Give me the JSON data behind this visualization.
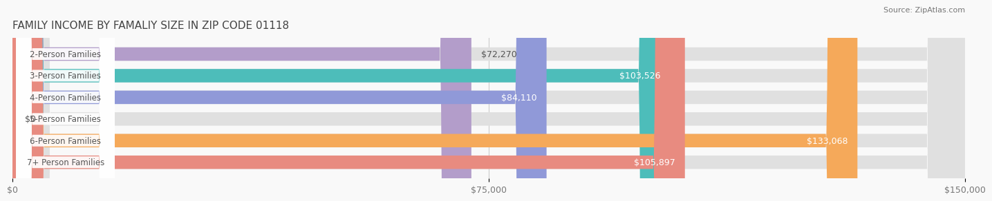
{
  "title": "FAMILY INCOME BY FAMALIY SIZE IN ZIP CODE 01118",
  "source": "Source: ZipAtlas.com",
  "categories": [
    "2-Person Families",
    "3-Person Families",
    "4-Person Families",
    "5-Person Families",
    "6-Person Families",
    "7+ Person Families"
  ],
  "values": [
    72270,
    103526,
    84110,
    0,
    133068,
    105897
  ],
  "bar_colors": [
    "#b39dca",
    "#4dbdba",
    "#9099d8",
    "#f7a8c0",
    "#f5a95a",
    "#e88b80"
  ],
  "bar_bg_color": "#e0e0e0",
  "xlim": [
    0,
    150000
  ],
  "xticks": [
    0,
    75000,
    150000
  ],
  "xtick_labels": [
    "$0",
    "$75,000",
    "$150,000"
  ],
  "bar_height": 0.62,
  "background_color": "#f9f9f9",
  "label_bg_color": "#ffffff",
  "title_fontsize": 11,
  "source_fontsize": 8,
  "bar_label_fontsize": 9,
  "cat_label_fontsize": 8.5
}
